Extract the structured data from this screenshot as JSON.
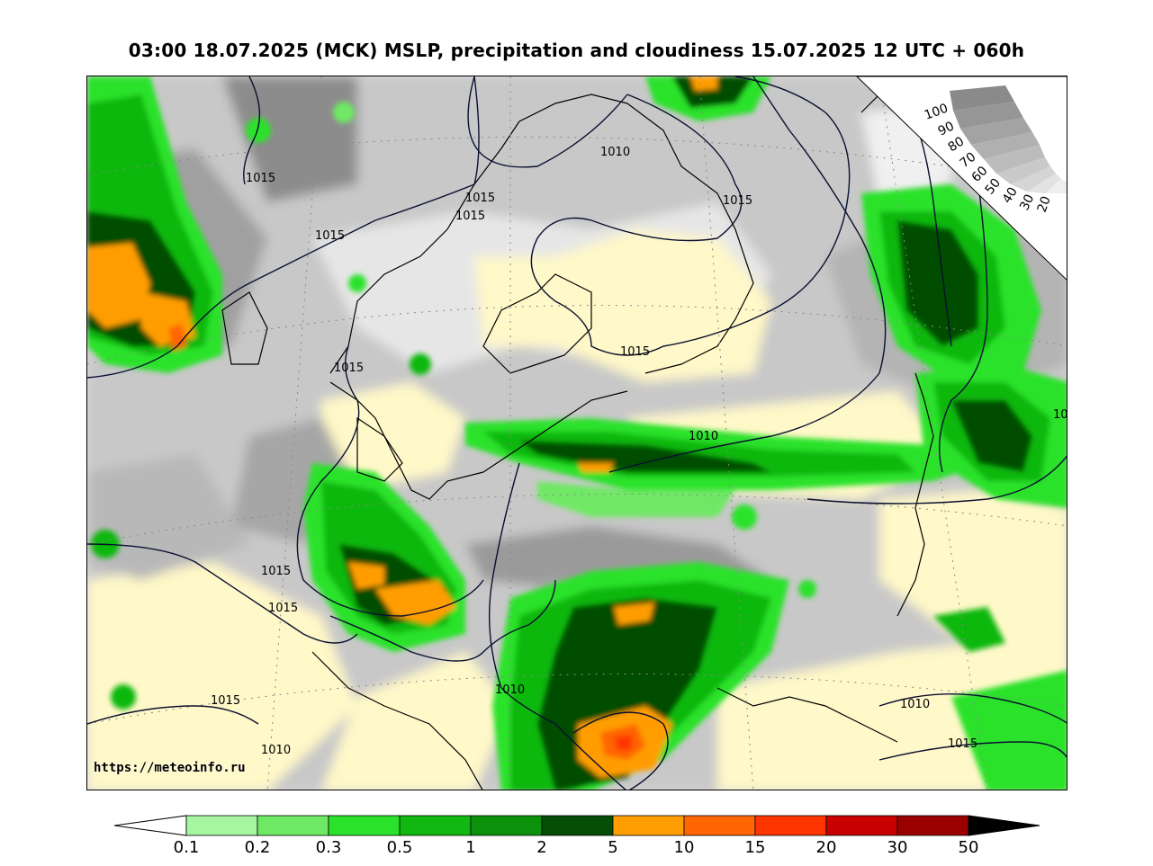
{
  "title": "03:00 18.07.2025 (MCK) MSLP, precipitation and cloudiness 15.07.2025 12 UTC + 060h",
  "watermark": "https://meteoinfo.ru",
  "isobar_labels": [
    "1015",
    "1015",
    "1015",
    "1015",
    "1015",
    "1015",
    "1015",
    "1015",
    "1015",
    "1015",
    "1010",
    "1010",
    "1010",
    "1010",
    "1010",
    "1015",
    "1015",
    "1010",
    "10"
  ],
  "cloudiness_scale": {
    "labels": [
      "100",
      "90",
      "80",
      "70",
      "60",
      "50",
      "40",
      "30",
      "20"
    ],
    "colors": [
      "#8a8a8a",
      "#969696",
      "#a3a3a3",
      "#b0b0b0",
      "#bcbcbc",
      "#c9c9c9",
      "#d5d5d5",
      "#e2e2e2",
      "#eeeeee"
    ]
  },
  "precip_scale": {
    "ticks": [
      "0.1",
      "0.2",
      "0.3",
      "0.5",
      "1",
      "2",
      "5",
      "10",
      "15",
      "20",
      "30",
      "50"
    ],
    "colors": [
      "#a6f5a0",
      "#6fe865",
      "#29e229",
      "#11b811",
      "#0b910b",
      "#064d06",
      "#ff9d00",
      "#ff6500",
      "#ff3500",
      "#c80000",
      "#9b0000"
    ],
    "under_color": "#ffffff",
    "over_color": "#000000"
  },
  "colors": {
    "land_clear": "#fff8c8",
    "pressure_contour": "#0a1030",
    "coastline": "#000000"
  }
}
